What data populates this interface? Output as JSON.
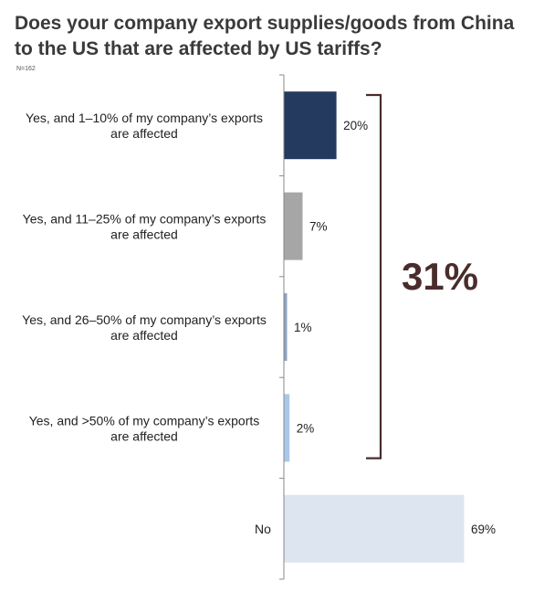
{
  "chart_data": {
    "type": "bar",
    "orientation": "horizontal",
    "title": "Does your company export supplies/goods from China to the US that are affected by US tariffs?",
    "sample_size": "N=162",
    "categories": [
      "Yes, and 1–10% of my company’s exports are affected",
      "Yes, and 11–25% of my company’s exports are affected",
      "Yes, and 26–50% of my company’s exports are affected",
      "Yes, and >50% of my company’s exports are affected",
      "No"
    ],
    "values": [
      20,
      7,
      1,
      2,
      69
    ],
    "value_labels": [
      "20%",
      "7%",
      "1%",
      "2%",
      "69%"
    ],
    "bar_colors": [
      "#243a5e",
      "#a6a6a6",
      "#8ea4c2",
      "#a9c7ea",
      "#dce5f0"
    ],
    "xlim": [
      0,
      100
    ],
    "grid": false,
    "annotation": {
      "text": "31%",
      "brackets_categories": [
        0,
        1,
        2,
        3
      ],
      "color": "#4a2c2c"
    }
  }
}
